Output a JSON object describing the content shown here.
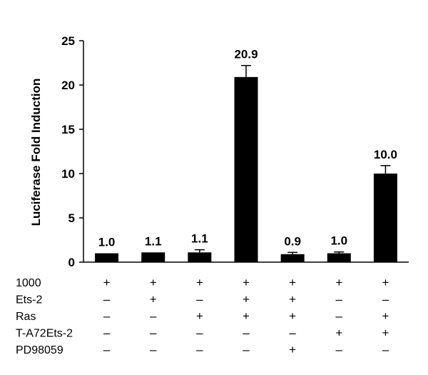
{
  "chart_data": {
    "type": "bar",
    "ylabel": "Luciferase Fold Induction",
    "ylim": [
      0,
      25
    ],
    "yticks": [
      "0",
      "5",
      "10",
      "15",
      "20",
      "25"
    ],
    "values": [
      1.0,
      1.1,
      1.1,
      20.9,
      0.9,
      1.0,
      10.0
    ],
    "errors": [
      0.0,
      0.0,
      0.3,
      1.3,
      0.2,
      0.15,
      0.9
    ],
    "data_labels": [
      "1.0",
      "1.1",
      "1.1",
      "20.9",
      "0.9",
      "1.0",
      "10.0"
    ],
    "bar_color": "#000000",
    "grid": false,
    "treatment_table": {
      "rows": [
        {
          "label": "1000",
          "signs": [
            "+",
            "+",
            "+",
            "+",
            "+",
            "+",
            "+"
          ]
        },
        {
          "label": "Ets-2",
          "signs": [
            "–",
            "+",
            "–",
            "+",
            "+",
            "–",
            "–"
          ]
        },
        {
          "label": "Ras",
          "signs": [
            "–",
            "–",
            "+",
            "+",
            "+",
            "–",
            "+"
          ]
        },
        {
          "label": "T-A72Ets-2",
          "signs": [
            "–",
            "–",
            "–",
            "–",
            "–",
            "+",
            "+"
          ]
        },
        {
          "label": "PD98059",
          "signs": [
            "–",
            "–",
            "–",
            "–",
            "+",
            "–",
            "–"
          ]
        }
      ]
    }
  }
}
